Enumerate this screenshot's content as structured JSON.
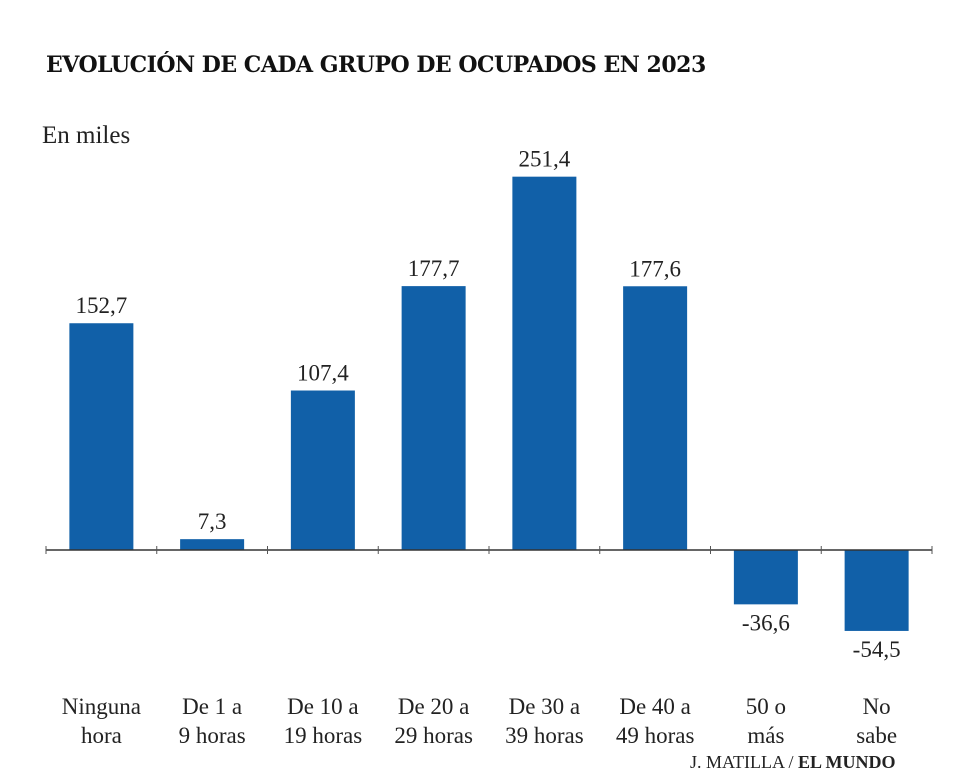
{
  "chart_data": {
    "type": "bar",
    "title": "EVOLUCIÓN DE CADA GRUPO DE OCUPADOS EN 2023",
    "unit_label": "En miles",
    "categories": [
      [
        "Ninguna",
        "hora"
      ],
      [
        "De 1 a",
        "9 horas"
      ],
      [
        "De 10 a",
        "19 horas"
      ],
      [
        "De 20 a",
        "29 horas"
      ],
      [
        "De 30 a",
        "39 horas"
      ],
      [
        "De 40 a",
        "49 horas"
      ],
      [
        "50 o",
        "más"
      ],
      [
        "No",
        "sabe"
      ]
    ],
    "values": [
      152.7,
      7.3,
      107.4,
      177.7,
      251.4,
      177.6,
      -36.6,
      -54.5
    ],
    "value_labels": [
      "152,7",
      "7,3",
      "107,4",
      "177,7",
      "251,4",
      "177,6",
      "-36,6",
      "-54,5"
    ],
    "bar_color": "#1160a8",
    "grid": false,
    "legend": "none"
  },
  "credit": {
    "author": "J. MATILLA / ",
    "outlet": "EL MUNDO"
  }
}
